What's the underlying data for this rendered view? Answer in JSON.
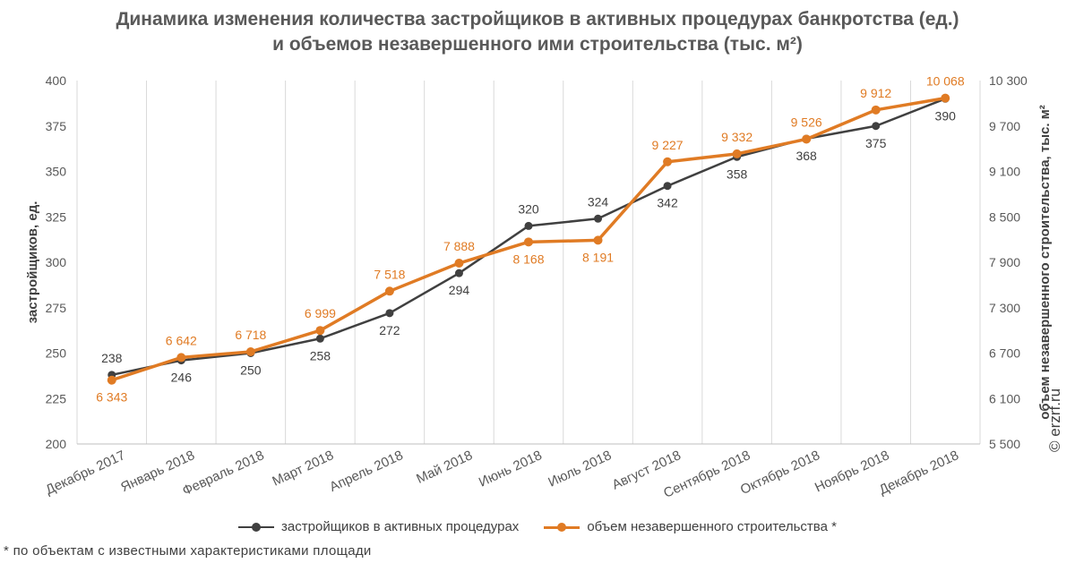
{
  "chart_data": {
    "type": "line",
    "title_line1": "Динамика изменения количества застройщиков в активных процедурах банкротства (ед.)",
    "title_line2": "и объемов незавершенного ими строительства (тыс. м²)",
    "categories": [
      "Декабрь 2017",
      "Январь 2018",
      "Февраль 2018",
      "Март 2018",
      "Апрель 2018",
      "Май 2018",
      "Июнь 2018",
      "Июль 2018",
      "Август 2018",
      "Сентябрь 2018",
      "Октябрь 2018",
      "Ноябрь 2018",
      "Декабрь 2018"
    ],
    "ylabel_left": "застройщиков, ед.",
    "ylabel_right": "объем незавершенного строительства, тыс. м²",
    "ylim_left": [
      200,
      400
    ],
    "yticks_left": [
      "200",
      "225",
      "250",
      "275",
      "300",
      "325",
      "350",
      "375",
      "400"
    ],
    "ylim_right": [
      5500,
      10300
    ],
    "yticks_right": [
      "5 500",
      "6 100",
      "6 700",
      "7 300",
      "7 900",
      "8 500",
      "9 100",
      "9 700",
      "10 300"
    ],
    "series": [
      {
        "name": "застройщиков в активных процедурах",
        "axis": "left",
        "color": "#404040",
        "values": [
          238,
          246,
          250,
          258,
          272,
          294,
          320,
          324,
          342,
          358,
          368,
          375,
          390
        ],
        "labels": [
          "238",
          "246",
          "250",
          "258",
          "272",
          "294",
          "320",
          "324",
          "342",
          "358",
          "368",
          "375",
          "390"
        ],
        "label_pos": [
          "above",
          "below",
          "below",
          "below",
          "below",
          "below",
          "above",
          "above",
          "below",
          "below",
          "below",
          "below",
          "below"
        ]
      },
      {
        "name": "объем незавершенного строительства *",
        "axis": "right",
        "color": "#e07b24",
        "values": [
          6343,
          6642,
          6718,
          6999,
          7518,
          7888,
          8168,
          8191,
          9227,
          9332,
          9526,
          9912,
          10068
        ],
        "labels": [
          "6 343",
          "6 642",
          "6 718",
          "6 999",
          "7 518",
          "7 888",
          "8 168",
          "8 191",
          "9 227",
          "9 332",
          "9 526",
          "9 912",
          "10 068"
        ],
        "label_pos": [
          "below",
          "above",
          "above",
          "above",
          "above",
          "above",
          "below",
          "below",
          "above",
          "above",
          "above",
          "above",
          "above"
        ]
      }
    ],
    "grid": "vertical",
    "legend_position": "bottom"
  },
  "footnote": "* по объектам с известными характеристиками площади",
  "watermark": "© erzrf.ru"
}
